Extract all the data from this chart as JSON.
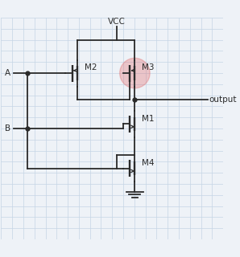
{
  "background_color": "#eef2f7",
  "grid_color": "#c5d5e5",
  "line_color": "#2a2a2a",
  "line_width": 1.3,
  "text_color": "#2a2a2a",
  "highlight_color": "#e05050",
  "highlight_alpha": 0.28,
  "vcc_label": "VCC",
  "output_label": "output",
  "A_label": "A",
  "B_label": "B",
  "M1_label": "M1",
  "M2_label": "M2",
  "M3_label": "M3",
  "M4_label": "M4",
  "font_size": 7.5,
  "xlim": [
    0,
    10
  ],
  "ylim": [
    0,
    10
  ],
  "grid_step": 0.5
}
